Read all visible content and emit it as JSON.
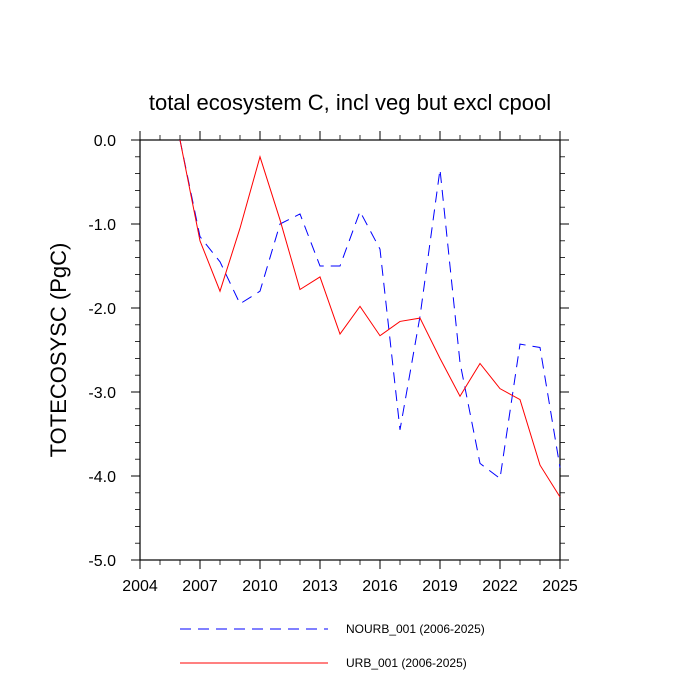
{
  "chart_data": {
    "type": "line",
    "title": "total ecosystem C, incl veg but excl cpool",
    "xlabel": "",
    "ylabel": "TOTECOSYSC  (PgC)",
    "xlim": [
      2004,
      2025
    ],
    "ylim": [
      -5.0,
      0.0
    ],
    "x_ticks": [
      2004,
      2007,
      2010,
      2013,
      2016,
      2019,
      2022,
      2025
    ],
    "x_tick_labels": [
      "2004",
      "2007",
      "2010",
      "2013",
      "2016",
      "2019",
      "2022",
      "2025"
    ],
    "y_ticks": [
      0.0,
      -1.0,
      -2.0,
      -3.0,
      -4.0,
      -5.0
    ],
    "y_tick_labels": [
      "0.0",
      "-1.0",
      "-2.0",
      "-3.0",
      "-4.0",
      "-5.0"
    ],
    "grid": false,
    "legend_position": "bottom",
    "x": [
      2006,
      2007,
      2008,
      2009,
      2010,
      2011,
      2012,
      2013,
      2014,
      2015,
      2016,
      2017,
      2018,
      2019,
      2020,
      2021,
      2022,
      2023,
      2024,
      2025
    ],
    "series": [
      {
        "name": "NOURB_001 (2006-2025)",
        "color": "#0000ff",
        "style": "dashed",
        "values": [
          0.0,
          -1.15,
          -1.45,
          -1.95,
          -1.8,
          -1.0,
          -0.88,
          -1.5,
          -1.5,
          -0.85,
          -1.3,
          -3.45,
          -2.1,
          -0.35,
          -2.65,
          -3.85,
          -4.03,
          -2.43,
          -2.47,
          -3.9
        ]
      },
      {
        "name": "URB_001 (2006-2025)",
        "color": "#ff0000",
        "style": "solid",
        "values": [
          0.0,
          -1.2,
          -1.8,
          -1.05,
          -0.2,
          -0.95,
          -1.78,
          -1.63,
          -2.31,
          -1.98,
          -2.33,
          -2.16,
          -2.12,
          -2.6,
          -3.05,
          -2.66,
          -2.96,
          -3.09,
          -3.87,
          -4.25
        ]
      }
    ]
  }
}
